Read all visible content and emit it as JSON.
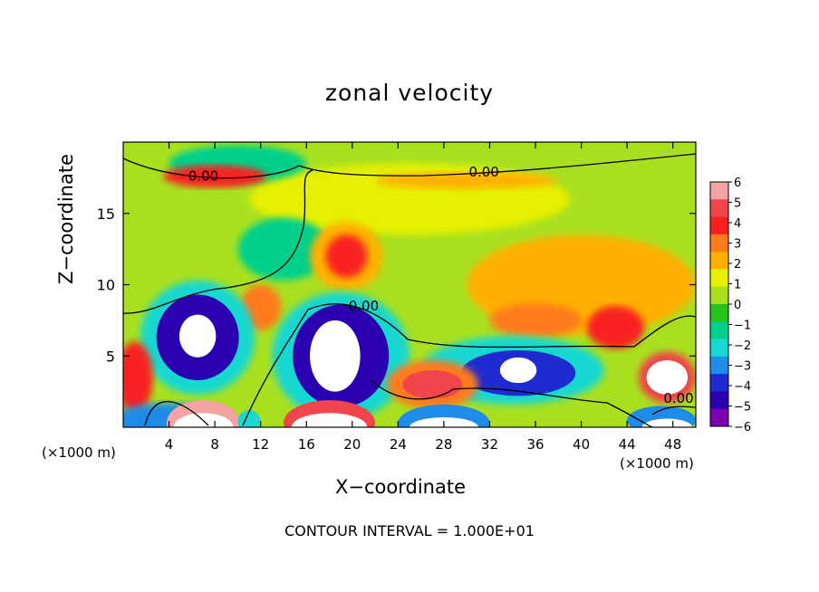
{
  "chart_data": {
    "type": "heatmap",
    "title": "zonal velocity",
    "xlabel": "X−coordinate",
    "ylabel": "Z−coordinate",
    "x_unit": "(×1000 m)",
    "x_ticks": [
      4,
      8,
      12,
      16,
      20,
      24,
      28,
      32,
      36,
      40,
      44,
      48
    ],
    "y_ticks": [
      5,
      10,
      15
    ],
    "xlim": [
      0,
      50
    ],
    "ylim": [
      0,
      20
    ],
    "colorbar": {
      "ticks": [
        "6",
        "5",
        "4",
        "3",
        "2",
        "1",
        "0",
        "−1",
        "−2",
        "−3",
        "−4",
        "−5",
        "−6"
      ],
      "range": [
        -6,
        6
      ],
      "colors": [
        "#f4a3a3",
        "#f0454a",
        "#f82020",
        "#ff7a1a",
        "#ffb000",
        "#e6f000",
        "#a8e020",
        "#26c21e",
        "#00d08a",
        "#18d8d0",
        "#1e8ce8",
        "#1f2bd0",
        "#2b00b0",
        "#7a00b0"
      ]
    },
    "contour_labels": [
      {
        "text": "0.00",
        "x": 7,
        "z": 17.3
      },
      {
        "text": "0.00",
        "x": 31.5,
        "z": 17.6
      },
      {
        "text": "0.00",
        "x": 21,
        "z": 8.2
      },
      {
        "text": "0.00",
        "x": 48.5,
        "z": 1.7
      }
    ],
    "features": [
      {
        "x": 6.5,
        "z": 6.5,
        "value": -8
      },
      {
        "x": 18.5,
        "z": 5.0,
        "value": -8
      },
      {
        "x": 34.5,
        "z": 3.8,
        "value": -6
      },
      {
        "x": 47.5,
        "z": 3.5,
        "value": 6
      },
      {
        "x": 19.5,
        "z": 12.0,
        "value": 3.5
      },
      {
        "x": 12.0,
        "z": 8.4,
        "value": 3
      },
      {
        "x": 27.0,
        "z": 3.0,
        "value": 4.5
      },
      {
        "x": 8.0,
        "z": 17.8,
        "value": 3.5
      },
      {
        "x": 1.0,
        "z": 3.0,
        "value": 4
      }
    ]
  },
  "footer": "CONTOUR INTERVAL = 1.000E+01"
}
